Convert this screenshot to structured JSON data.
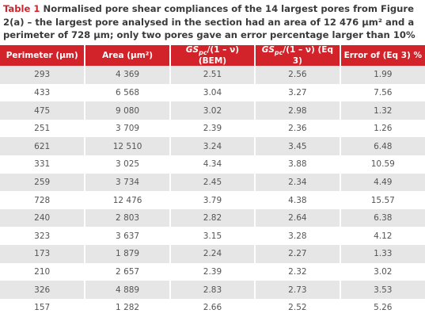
{
  "caption": {
    "label": "Table 1",
    "text": "Normalised pore shear compliances of the 14 largest pores from Figure 2(a) – the largest pore analysed in the section had an area of 12 476 µm² and a perimeter of 728 µm; only two pores gave an error percentage larger than 10%"
  },
  "table": {
    "header": [
      {
        "text": "Perimeter (µm)"
      },
      {
        "text": "Area (µm²)"
      },
      {
        "main": "GS",
        "sub": "pc",
        "rest": "/(1 – ν) (BEM)"
      },
      {
        "main": "GS",
        "sub": "pc",
        "rest": "/(1 – ν) (Eq 3)"
      },
      {
        "text": "Error of (Eq 3) %"
      }
    ],
    "rows": [
      [
        "293",
        "4 369",
        "2.51",
        "2.56",
        "1.99"
      ],
      [
        "433",
        "6 568",
        "3.04",
        "3.27",
        "7.56"
      ],
      [
        "475",
        "9 080",
        "3.02",
        "2.98",
        "1.32"
      ],
      [
        "251",
        "3 709",
        "2.39",
        "2.36",
        "1.26"
      ],
      [
        "621",
        "12 510",
        "3.24",
        "3.45",
        "6.48"
      ],
      [
        "331",
        "3 025",
        "4.34",
        "3.88",
        "10.59"
      ],
      [
        "259",
        "3 734",
        "2.45",
        "2.34",
        "4.49"
      ],
      [
        "728",
        "12 476",
        "3.79",
        "4.38",
        "15.57"
      ],
      [
        "240",
        "2 803",
        "2.82",
        "2.64",
        "6.38"
      ],
      [
        "323",
        "3 637",
        "3.15",
        "3.28",
        "4.12"
      ],
      [
        "173",
        "1 879",
        "2.24",
        "2.27",
        "1.33"
      ],
      [
        "210",
        "2 657",
        "2.39",
        "2.32",
        "3.02"
      ],
      [
        "326",
        "4 889",
        "2.83",
        "2.73",
        "3.53"
      ],
      [
        "157",
        "1 282",
        "2.66",
        "2.52",
        "5.26"
      ]
    ]
  }
}
